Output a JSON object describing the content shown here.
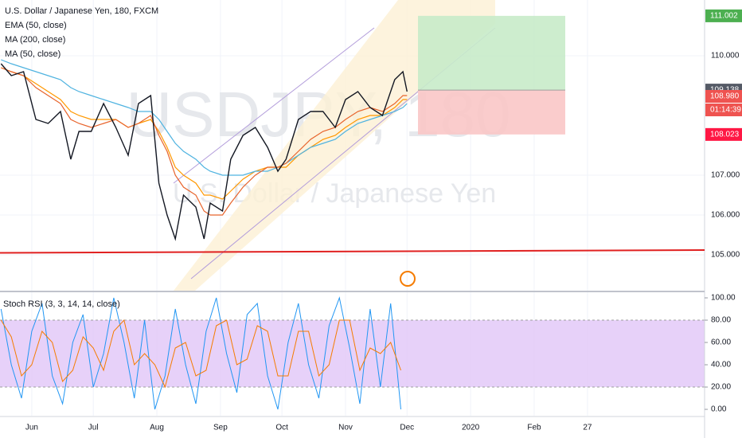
{
  "chart_data": [
    {
      "type": "line",
      "title": "U.S. Dollar / Japanese Yen, 180, FXCM",
      "watermark": "USDJPY, 180",
      "watermark_subtitle": "U.S. Dollar / Japanese Yen",
      "x": [
        136,
        141,
        147,
        153,
        159,
        165,
        170,
        174,
        180,
        186,
        192,
        198,
        203,
        209,
        213,
        217,
        221,
        225,
        231,
        235,
        238,
        244,
        248,
        254,
        260,
        266,
        271,
        275,
        281,
        287,
        293,
        299,
        304,
        310,
        316,
        322,
        328,
        332,
        334
      ],
      "values": [
        109.8,
        109.5,
        109.6,
        108.4,
        108.3,
        108.6,
        107.4,
        108.1,
        108.1,
        108.8,
        108.2,
        107.5,
        108.8,
        109.0,
        106.8,
        106.0,
        105.4,
        106.5,
        106.2,
        105.4,
        106.3,
        106.1,
        107.4,
        108.0,
        108.2,
        107.7,
        107.1,
        107.4,
        108.4,
        108.6,
        108.6,
        108.2,
        108.9,
        109.1,
        108.7,
        108.5,
        109.4,
        109.6,
        109.1
      ],
      "color": "#131722",
      "series": [
        {
          "name": "EMA (50, close)",
          "color": "#ff9800",
          "values": [
            109.7,
            109.6,
            109.5,
            109.3,
            109.1,
            108.9,
            108.6,
            108.5,
            108.4,
            108.4,
            108.4,
            108.2,
            108.3,
            108.4,
            108.1,
            107.7,
            107.2,
            107.0,
            106.8,
            106.5,
            106.5,
            106.4,
            106.6,
            106.9,
            107.1,
            107.2,
            107.2,
            107.2,
            107.5,
            107.7,
            107.9,
            108.0,
            108.2,
            108.4,
            108.5,
            108.5,
            108.7,
            108.9,
            108.9
          ]
        },
        {
          "name": "MA (200, close)",
          "color": "#4fb3e0",
          "values": [
            109.9,
            109.8,
            109.7,
            109.6,
            109.5,
            109.4,
            109.2,
            109.1,
            109.0,
            108.9,
            108.8,
            108.7,
            108.6,
            108.6,
            108.4,
            108.1,
            107.8,
            107.6,
            107.4,
            107.2,
            107.1,
            107.0,
            107.0,
            107.0,
            107.1,
            107.1,
            107.2,
            107.3,
            107.5,
            107.7,
            107.8,
            107.9,
            108.1,
            108.3,
            108.4,
            108.5,
            108.6,
            108.7,
            108.8
          ]
        },
        {
          "name": "MA (50, close)",
          "color": "#e8642c",
          "values": [
            109.7,
            109.6,
            109.5,
            109.2,
            109.0,
            108.8,
            108.4,
            108.3,
            108.2,
            108.3,
            108.4,
            108.2,
            108.3,
            108.5,
            108.0,
            107.6,
            107.0,
            106.7,
            106.5,
            106.1,
            106.0,
            106.0,
            106.3,
            106.7,
            107.0,
            107.2,
            107.2,
            107.3,
            107.6,
            107.9,
            108.1,
            108.2,
            108.4,
            108.6,
            108.7,
            108.6,
            108.8,
            109.0,
            109.0
          ]
        }
      ],
      "support": {
        "values": [
          105.05,
          105.12
        ],
        "color": "#e02020"
      },
      "price_tags": [
        {
          "value": 111.002,
          "label": "111.002",
          "color": "#4caf50"
        },
        {
          "value": 109.138,
          "label": "109.138",
          "color": "#555a66"
        },
        {
          "value": 108.98,
          "label": "108.980",
          "color": "#ef5350"
        },
        {
          "label": "01:14:39",
          "color": "#ef5350"
        },
        {
          "value": 108.023,
          "label": "108.023",
          "color": "#ff1744"
        }
      ],
      "xlim": [
        135.5,
        479.1
      ],
      "ylim": [
        104.1,
        111.4
      ],
      "yticks": [
        {
          "value": 105,
          "label": "105.000"
        },
        {
          "value": 106,
          "label": "106.000"
        },
        {
          "value": 107,
          "label": "107.000"
        },
        {
          "value": 110,
          "label": "110.000"
        }
      ]
    },
    {
      "type": "line",
      "title": "Stoch RSI (3, 3, 14, 14, close)",
      "x": [
        136,
        141,
        146,
        151,
        156,
        161,
        166,
        171,
        176,
        181,
        186,
        191,
        196,
        201,
        206,
        211,
        216,
        221,
        226,
        231,
        236,
        241,
        246,
        251,
        256,
        261,
        266,
        271,
        276,
        281,
        286,
        291,
        296,
        301,
        306,
        311,
        316,
        321,
        326,
        331
      ],
      "series": [
        {
          "color": "#2196f3",
          "values": [
            90,
            40,
            10,
            70,
            95,
            30,
            5,
            60,
            85,
            20,
            50,
            100,
            60,
            10,
            80,
            0,
            30,
            90,
            40,
            5,
            70,
            100,
            50,
            15,
            85,
            95,
            30,
            0,
            60,
            95,
            40,
            10,
            75,
            100,
            55,
            5,
            90,
            20,
            95,
            0
          ]
        },
        {
          "color": "#f57c00",
          "values": [
            80,
            65,
            30,
            40,
            70,
            60,
            25,
            35,
            65,
            55,
            35,
            70,
            80,
            40,
            50,
            40,
            20,
            55,
            60,
            30,
            35,
            75,
            80,
            40,
            45,
            75,
            70,
            30,
            30,
            70,
            70,
            30,
            40,
            80,
            80,
            35,
            55,
            50,
            60,
            35
          ]
        }
      ],
      "band": [
        20,
        80
      ],
      "band_color": "#e1c6f7",
      "xlim": [
        135.5,
        479.1
      ],
      "ylim": [
        -5.7,
        104.3
      ],
      "yticks": [
        {
          "value": 0,
          "label": "0.00"
        },
        {
          "value": 20,
          "label": "20.00"
        },
        {
          "value": 40,
          "label": "40.00"
        },
        {
          "value": 60,
          "label": "60.00"
        },
        {
          "value": 80,
          "label": "80.00"
        },
        {
          "value": 100,
          "label": "100.00"
        }
      ],
      "xticks": [
        {
          "value": 151,
          "label": "Jun"
        },
        {
          "value": 181,
          "label": "Jul"
        },
        {
          "value": 212,
          "label": "Aug"
        },
        {
          "value": 243,
          "label": "Sep"
        },
        {
          "value": 273,
          "label": "Oct"
        },
        {
          "value": 304,
          "label": "Nov"
        },
        {
          "value": 334,
          "label": "Dec"
        },
        {
          "value": 365,
          "label": "2020"
        },
        {
          "value": 396,
          "label": "Feb"
        },
        {
          "value": 422,
          "label": "27"
        }
      ]
    }
  ]
}
